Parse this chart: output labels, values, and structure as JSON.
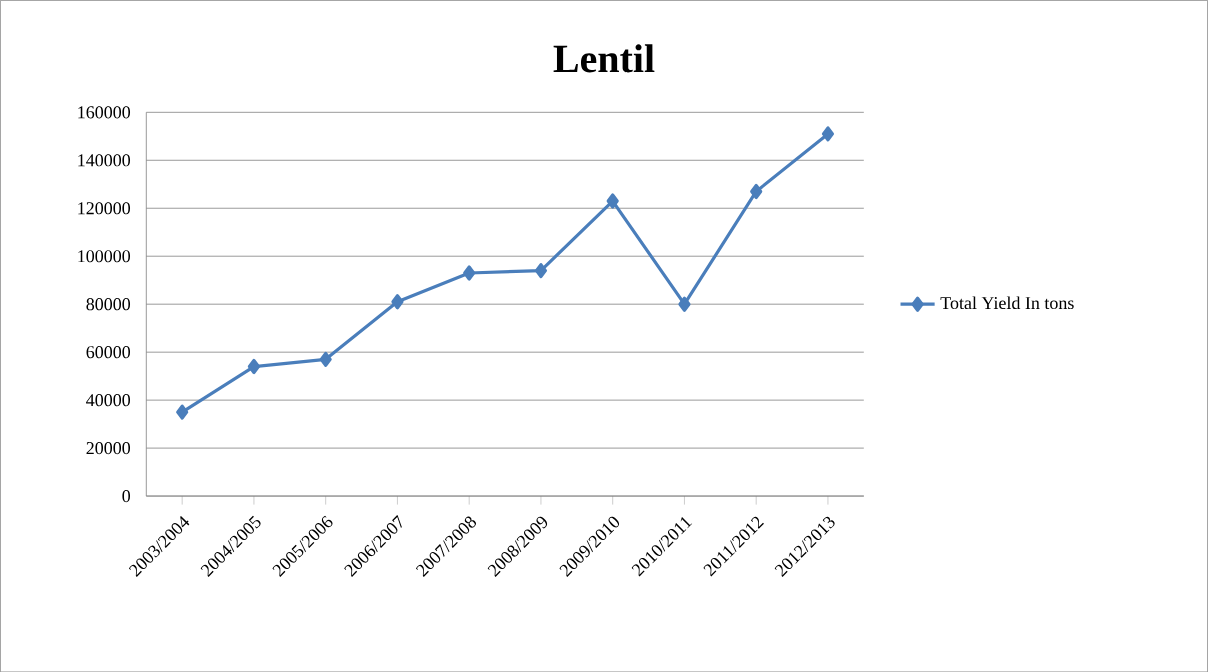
{
  "chart_data": {
    "type": "line",
    "title": "Lentil",
    "categories": [
      "2003/2004",
      "2004/2005",
      "2005/2006",
      "2006/2007",
      "2007/2008",
      "2008/2009",
      "2009/2010",
      "2010/2011",
      "2011/2012",
      "2012/2013"
    ],
    "series": [
      {
        "name": "Total Yield In tons",
        "color": "#4a7ebb",
        "values": [
          35000,
          54000,
          57000,
          81000,
          93000,
          94000,
          123000,
          80000,
          127000,
          151000
        ]
      }
    ],
    "ylim": [
      0,
      160000
    ],
    "yticks": [
      0,
      20000,
      40000,
      60000,
      80000,
      100000,
      120000,
      140000,
      160000
    ],
    "grid": "y",
    "legend": "right",
    "marker": "diamond",
    "line_style": "solid"
  }
}
